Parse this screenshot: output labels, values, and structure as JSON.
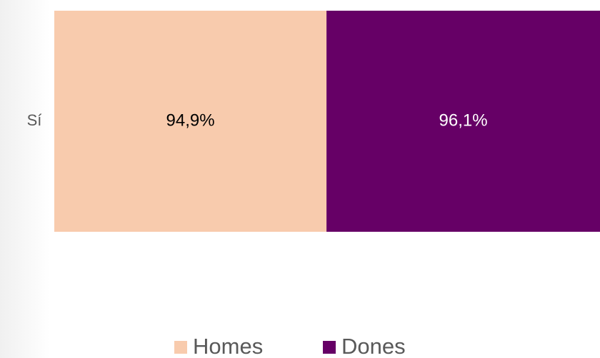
{
  "chart_data": {
    "type": "stacked-bar-horizontal",
    "categories": [
      "Sí"
    ],
    "series": [
      {
        "name": "Homes",
        "color": "#f8cbad",
        "label_color": "#000000",
        "values": [
          94.9
        ],
        "value_labels": [
          "94,9%"
        ]
      },
      {
        "name": "Dones",
        "color": "#660066",
        "label_color": "#ffffff",
        "values": [
          96.1
        ],
        "value_labels": [
          "96,1%"
        ]
      }
    ],
    "legend": "bottom"
  }
}
